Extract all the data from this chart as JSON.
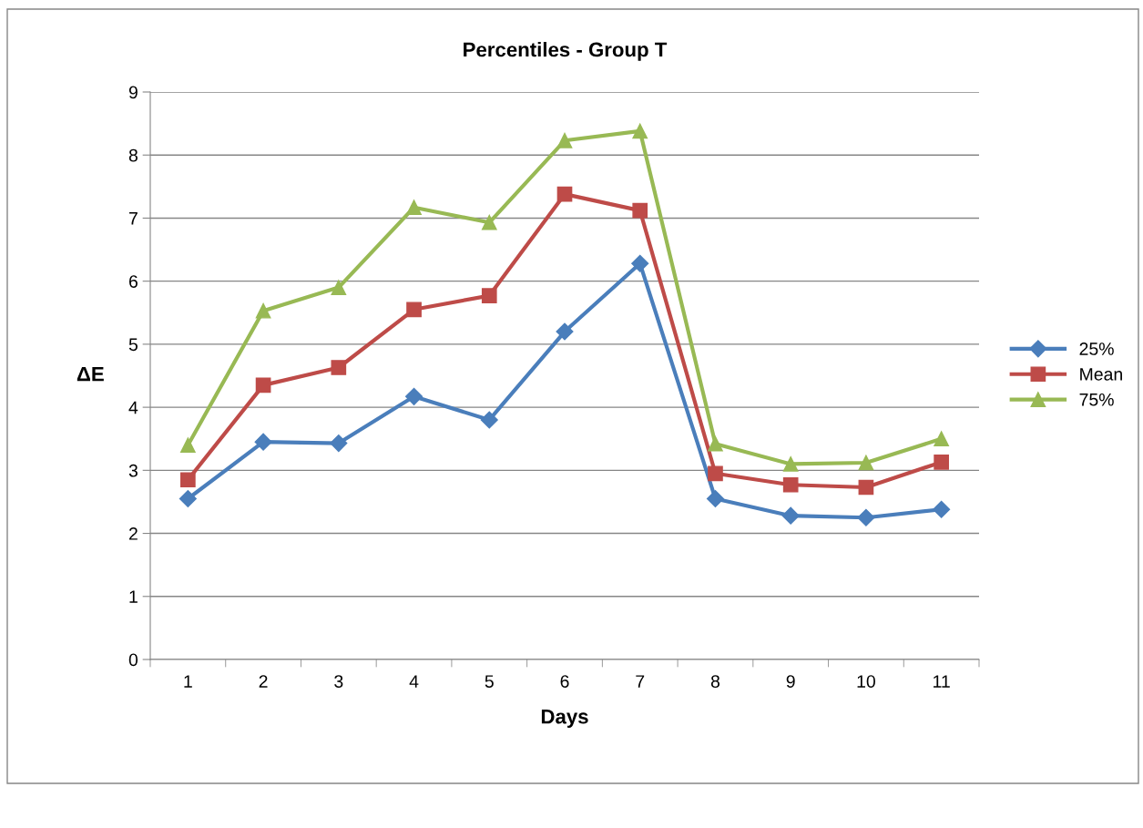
{
  "chart_data": {
    "type": "line",
    "title": "Percentiles - Group T",
    "xlabel": "Days",
    "ylabel": "ΔE",
    "categories": [
      "1",
      "2",
      "3",
      "4",
      "5",
      "6",
      "7",
      "8",
      "9",
      "10",
      "11"
    ],
    "series": [
      {
        "name": "25%",
        "color": "#4a7ebb",
        "marker": "diamond",
        "values": [
          2.55,
          3.45,
          3.43,
          4.17,
          3.8,
          5.2,
          6.28,
          2.55,
          2.28,
          2.25,
          2.38
        ]
      },
      {
        "name": "Mean",
        "color": "#be4b48",
        "marker": "square",
        "values": [
          2.85,
          4.35,
          4.63,
          5.55,
          5.77,
          7.38,
          7.12,
          2.95,
          2.77,
          2.73,
          3.13
        ]
      },
      {
        "name": "75%",
        "color": "#98b954",
        "marker": "triangle",
        "values": [
          3.4,
          5.53,
          5.9,
          7.17,
          6.93,
          8.23,
          8.38,
          3.42,
          3.1,
          3.12,
          3.5
        ]
      }
    ],
    "ylim": [
      0,
      9
    ],
    "yticks": [
      0,
      1,
      2,
      3,
      4,
      5,
      6,
      7,
      8,
      9
    ],
    "grid": "y",
    "legend": "right",
    "line_style": "solid"
  }
}
